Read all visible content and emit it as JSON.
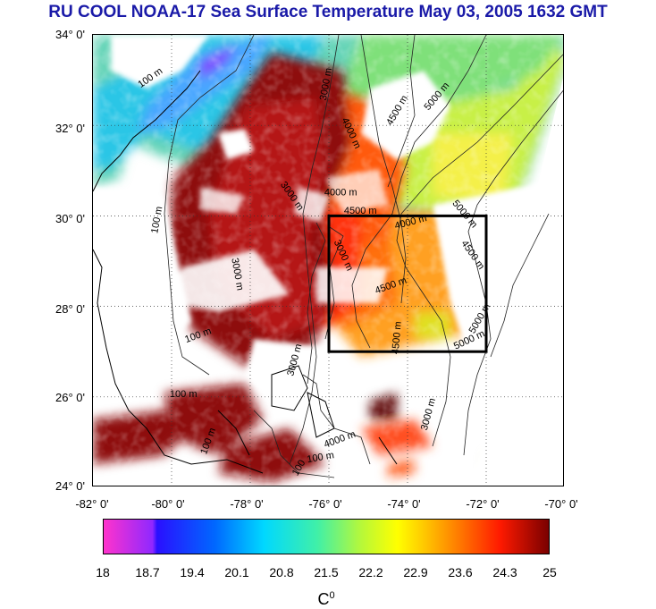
{
  "title": "RU COOL  NOAA-17 Sea Surface Temperature May 03, 2005 1632 GMT",
  "map": {
    "lat_ticks": [
      "34° 0'",
      "32° 0'",
      "30° 0'",
      "28° 0'",
      "26° 0'",
      "24° 0'"
    ],
    "lon_ticks": [
      "-82° 0'",
      "-80° 0'",
      "-78° 0'",
      "-76° 0'",
      "-74° 0'",
      "-72° 0'",
      "-70° 0'"
    ],
    "lat_range": [
      24,
      34
    ],
    "lon_range": [
      -82,
      -70
    ],
    "study_box": {
      "lon": [
        -76,
        -72
      ],
      "lat": [
        27,
        30
      ]
    },
    "contour_labels": [
      {
        "text": "100 m",
        "lon": -80.5,
        "lat": 33.0,
        "rot": -35
      },
      {
        "text": "3000 m",
        "lon": -76.0,
        "lat": 32.9,
        "rot": -80
      },
      {
        "text": "5000 m",
        "lon": -73.2,
        "lat": 32.6,
        "rot": -50
      },
      {
        "text": "4500 m",
        "lon": -74.2,
        "lat": 32.3,
        "rot": -60
      },
      {
        "text": "4000 m",
        "lon": -75.5,
        "lat": 31.8,
        "rot": 65
      },
      {
        "text": "100 m",
        "lon": -80.3,
        "lat": 29.9,
        "rot": -80
      },
      {
        "text": "3000 m",
        "lon": -77.0,
        "lat": 30.4,
        "rot": 55
      },
      {
        "text": "4000 m",
        "lon": -75.7,
        "lat": 30.45,
        "rot": 0
      },
      {
        "text": "4500 m",
        "lon": -75.2,
        "lat": 30.05,
        "rot": 0
      },
      {
        "text": "5000 m",
        "lon": -72.6,
        "lat": 30.0,
        "rot": 50
      },
      {
        "text": "4000 m",
        "lon": -73.9,
        "lat": 29.8,
        "rot": -15
      },
      {
        "text": "4500 m",
        "lon": -72.4,
        "lat": 29.1,
        "rot": 55
      },
      {
        "text": "3000 m",
        "lon": -75.7,
        "lat": 29.1,
        "rot": 65
      },
      {
        "text": "4500 m",
        "lon": -74.4,
        "lat": 28.4,
        "rot": -20
      },
      {
        "text": "3000 m",
        "lon": -78.4,
        "lat": 28.7,
        "rot": 80
      },
      {
        "text": "5000 m",
        "lon": -72.1,
        "lat": 27.7,
        "rot": -60
      },
      {
        "text": "5000 m",
        "lon": -72.4,
        "lat": 27.2,
        "rot": -25
      },
      {
        "text": "4500 m",
        "lon": -74.2,
        "lat": 27.3,
        "rot": -85
      },
      {
        "text": "100 m",
        "lon": -79.3,
        "lat": 27.3,
        "rot": -20
      },
      {
        "text": "3000 m",
        "lon": -76.8,
        "lat": 26.8,
        "rot": -75
      },
      {
        "text": "100 m",
        "lon": -79.7,
        "lat": 26.0,
        "rot": 0
      },
      {
        "text": "3000 m",
        "lon": -73.4,
        "lat": 25.6,
        "rot": -75
      },
      {
        "text": "4000 m",
        "lon": -75.7,
        "lat": 25.0,
        "rot": -20
      },
      {
        "text": "100 m",
        "lon": -79.0,
        "lat": 25.0,
        "rot": -70
      },
      {
        "text": "100 m",
        "lon": -76.2,
        "lat": 24.6,
        "rot": -10
      },
      {
        "text": "100",
        "lon": -76.7,
        "lat": 24.4,
        "rot": -60
      }
    ]
  },
  "colorbar": {
    "ticks": [
      "18",
      "18.7",
      "19.4",
      "20.1",
      "20.8",
      "21.5",
      "22.2",
      "22.9",
      "23.6",
      "24.3",
      "25"
    ],
    "unit": "C",
    "unit_sup": "0"
  }
}
